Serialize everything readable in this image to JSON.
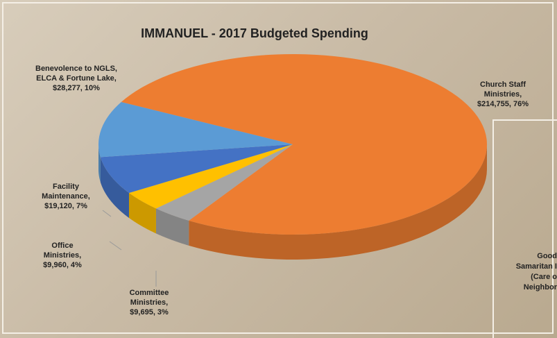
{
  "chart_data": {
    "type": "pie3d",
    "title": "IMMANUEL - 2017 Budgeted Spending",
    "categories": [
      "Church Staff Ministries,",
      "Committee Ministries,",
      "Office Ministries,",
      "Facility Maintenance,",
      "Benevolence to NGLS, ELCA & Fortune Lake,"
    ],
    "values": [
      214755,
      9695,
      9960,
      19120,
      28277
    ],
    "value_labels": [
      "$214,755, 76%",
      "$9,695, 3%",
      "$9,960, 4%",
      "$19,120, 7%",
      "$28,277, 10%"
    ],
    "colors": [
      "#ED7D31",
      "#A5A5A5",
      "#FFC000",
      "#4472C4",
      "#5B9BD5"
    ]
  },
  "annotation": [
    "Good",
    "Samaritan I",
    "(Care o",
    "Neighbor"
  ]
}
